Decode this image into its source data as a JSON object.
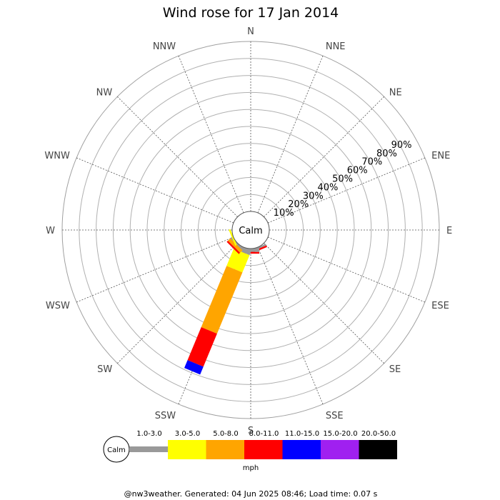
{
  "chart_data": {
    "type": "wind-rose",
    "title": "Wind rose for 17 Jan 2014",
    "directions": [
      "N",
      "NNE",
      "NE",
      "ENE",
      "E",
      "ESE",
      "SE",
      "SSE",
      "S",
      "SSW",
      "SW",
      "WSW",
      "W",
      "WNW",
      "NW",
      "NNW"
    ],
    "radial_ticks": [
      "10%",
      "20%",
      "30%",
      "40%",
      "50%",
      "60%",
      "70%",
      "80%",
      "90%"
    ],
    "radial_max": 100,
    "calm_label": "Calm",
    "speed_bins": [
      "1.0-3.0",
      "3.0-5.0",
      "5.0-8.0",
      "8.0-11.0",
      "11.0-15.0",
      "15.0-20.0",
      "20.0-50.0"
    ],
    "bin_colors": [
      "#999999",
      "#ffff00",
      "#ffa500",
      "#ff0000",
      "#0000ff",
      "#a020f0",
      "#000000"
    ],
    "unit": "mph",
    "series": [
      {
        "direction": "SSE",
        "values": [
          1,
          0,
          0,
          1,
          0,
          0,
          0
        ]
      },
      {
        "direction": "S",
        "values": [
          2,
          0,
          0,
          1,
          0,
          0,
          0
        ]
      },
      {
        "direction": "SSW",
        "values": [
          3,
          11,
          39,
          21,
          5,
          0,
          0
        ]
      },
      {
        "direction": "SW",
        "values": [
          1,
          0,
          2,
          1,
          0,
          0,
          0
        ]
      },
      {
        "direction": "WSW",
        "values": [
          0,
          1,
          0,
          0,
          0,
          0,
          0
        ]
      }
    ]
  },
  "footer": "@nw3weather. Generated: 04 Jun 2025 08:46; Load time: 0.07 s"
}
